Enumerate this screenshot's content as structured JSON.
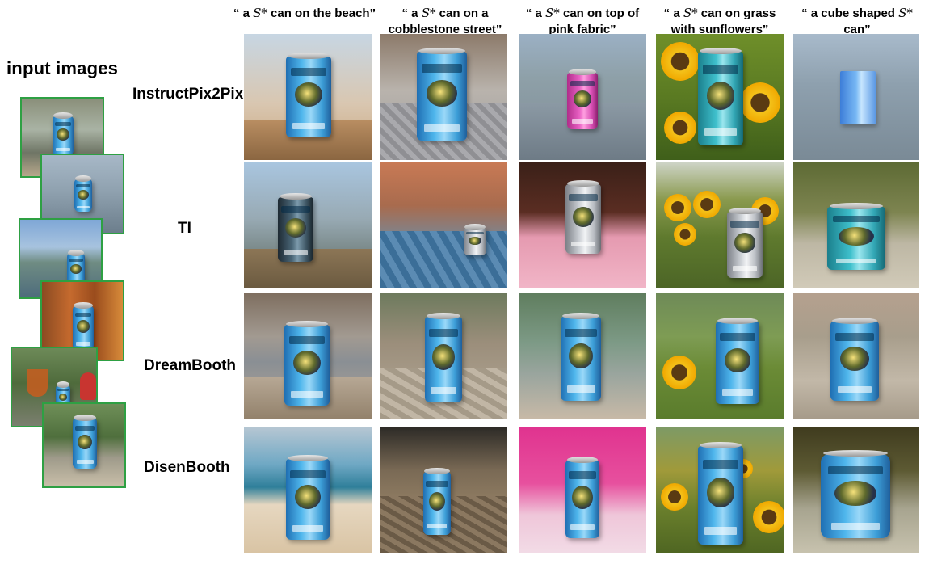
{
  "figure": {
    "input_label": "input images",
    "prompts": [
      {
        "pre": "“ a ",
        "sym": "S*",
        "post": " can on the beach”"
      },
      {
        "pre": "“ a ",
        "sym": "S*",
        "post": " can on a cobblestone street”"
      },
      {
        "pre": "“ a ",
        "sym": "S*",
        "post": " can on top of pink fabric”"
      },
      {
        "pre": "“ a ",
        "sym": "S*",
        "post": " can on grass with sunflowers”"
      },
      {
        "pre": "“ a cube shaped ",
        "sym": "S*",
        "post": " can”"
      }
    ],
    "methods": [
      "InstructPix2Pix",
      "TI",
      "DreamBooth",
      "DisenBooth"
    ],
    "input_count": 6,
    "colors": {
      "input_border": "#2ea043",
      "can_blue": "#4fb6ec"
    }
  }
}
